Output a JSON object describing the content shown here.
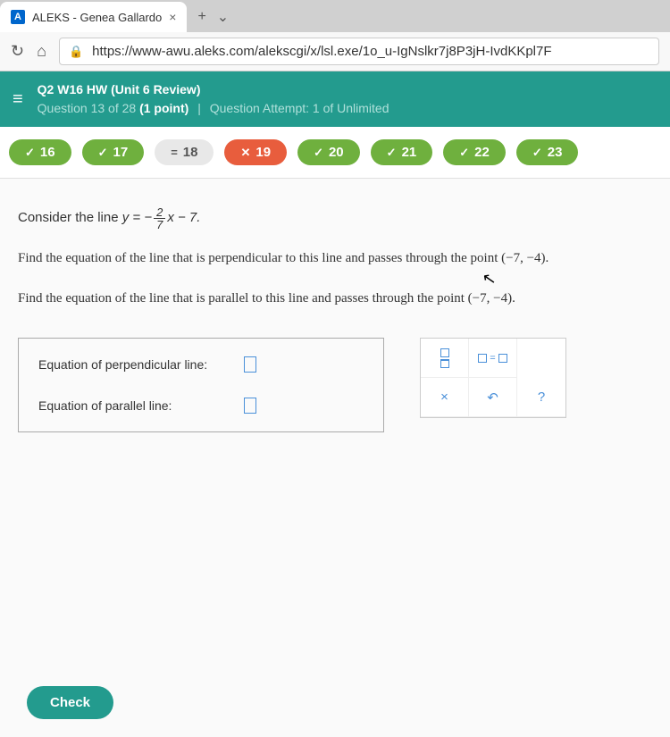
{
  "browser": {
    "tab_title": "ALEKS - Genea Gallardo",
    "favicon_letter": "A",
    "url": "https://www-awu.aleks.com/alekscgi/x/lsl.exe/1o_u-IgNslkr7j8P3jH-IvdKKpl7F"
  },
  "header": {
    "assignment": "Q2 W16 HW (Unit 6 Review)",
    "question_num": "Question 13 of 28",
    "points": "(1 point)",
    "attempt": "Question Attempt: 1 of Unlimited"
  },
  "pills": [
    {
      "num": "16",
      "state": "green",
      "icon": "✓"
    },
    {
      "num": "17",
      "state": "green",
      "icon": "✓"
    },
    {
      "num": "18",
      "state": "gray",
      "icon": "="
    },
    {
      "num": "19",
      "state": "orange",
      "icon": "✕"
    },
    {
      "num": "20",
      "state": "green",
      "icon": "✓"
    },
    {
      "num": "21",
      "state": "green",
      "icon": "✓"
    },
    {
      "num": "22",
      "state": "green",
      "icon": "✓"
    },
    {
      "num": "23",
      "state": "green",
      "icon": "✓"
    }
  ],
  "problem": {
    "intro": "Consider the line ",
    "eq_lhs": "y = −",
    "frac_num": "2",
    "frac_den": "7",
    "eq_rhs": "x − 7.",
    "p1": "Find the equation of the line that is perpendicular to this line and passes through the point (−7,  −4).",
    "p2": "Find the equation of the line that is parallel to this line and passes through the point (−7,  −4).",
    "label_perp": "Equation of perpendicular line:",
    "label_para": "Equation of parallel line:"
  },
  "buttons": {
    "check": "Check"
  },
  "colors": {
    "teal": "#239b8e",
    "green": "#6fb03e",
    "orange": "#e85d3d",
    "blue": "#4a90d9"
  }
}
